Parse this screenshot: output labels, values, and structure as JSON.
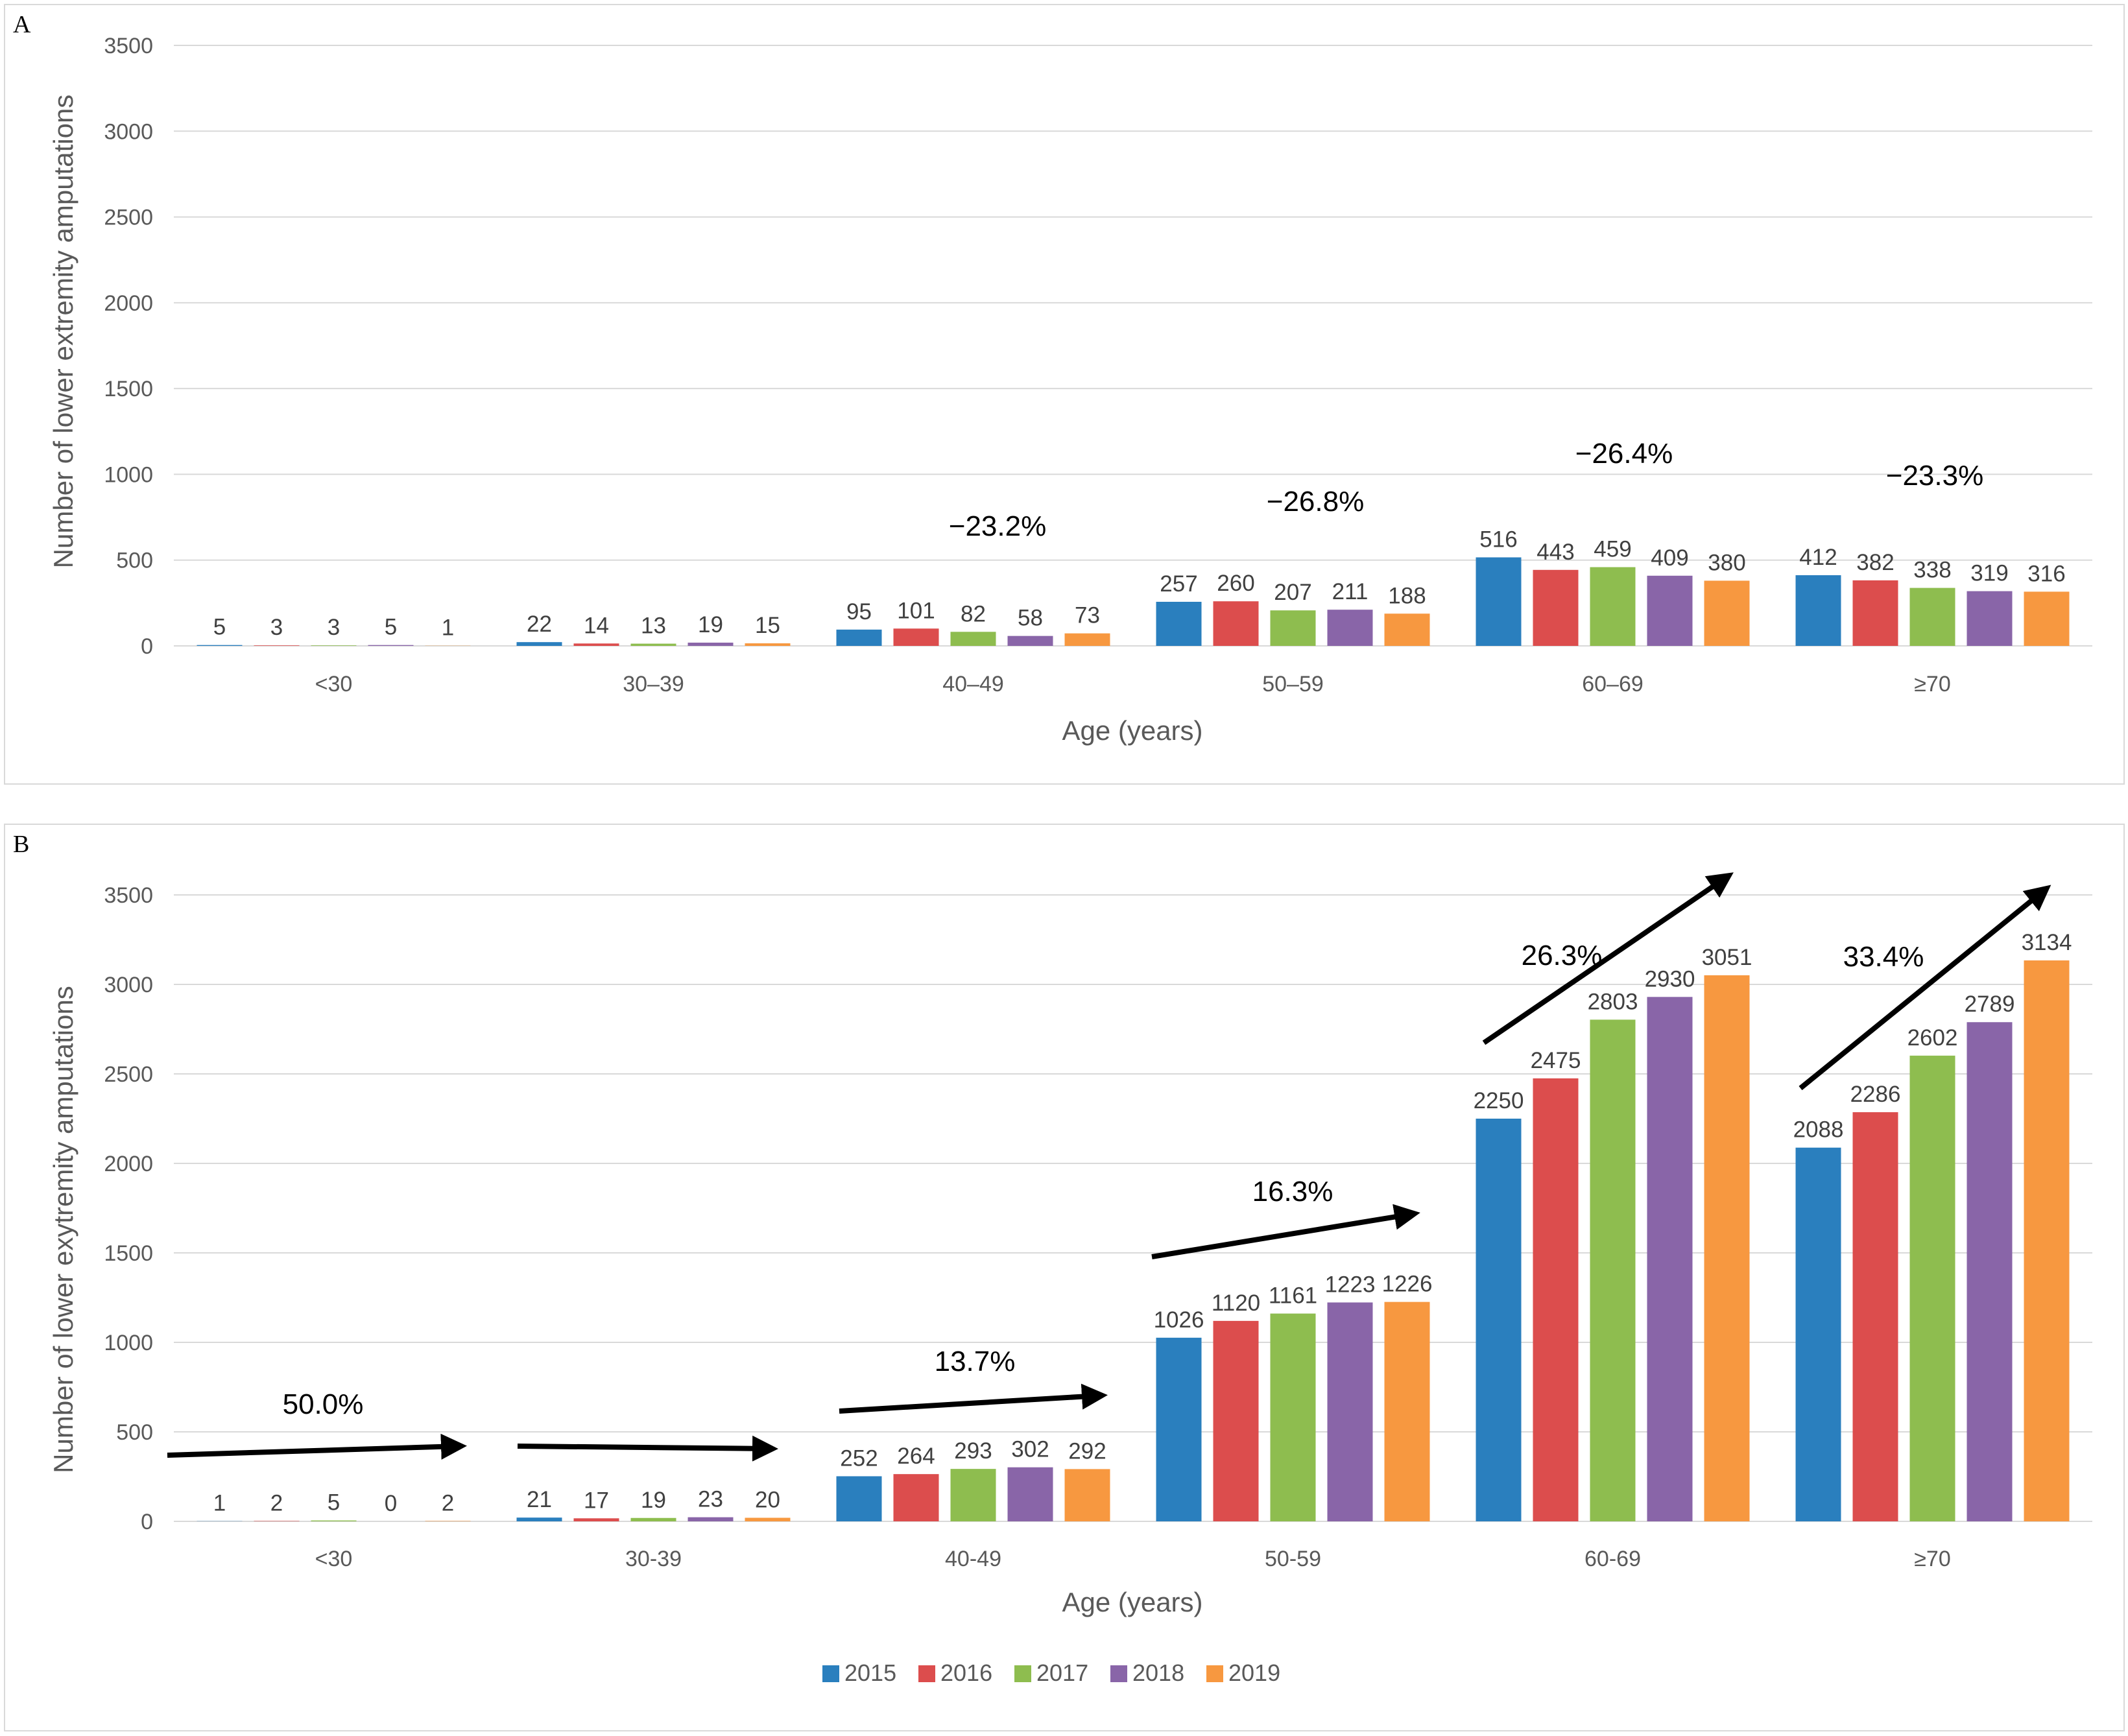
{
  "colors": {
    "2015": "#2a7fbe",
    "2016": "#dc4d4d",
    "2017": "#8ebd4f",
    "2018": "#8965a8",
    "2019": "#f79840",
    "grid": "#d9d9d9",
    "text": "#595959"
  },
  "legend": [
    "2015",
    "2016",
    "2017",
    "2018",
    "2019"
  ],
  "chart_data": [
    {
      "panel": "A",
      "type": "bar",
      "xlabel": "Age (years)",
      "ylabel": "Number of lower extremity amputations",
      "ylim": [
        0,
        3500
      ],
      "yticks": [
        0,
        500,
        1000,
        1500,
        2000,
        2500,
        3000,
        3500
      ],
      "grid": true,
      "categories": [
        "<30",
        "30–39",
        "40–49",
        "50–59",
        "60–69",
        "≥70"
      ],
      "series": [
        {
          "name": "2015",
          "values": [
            5,
            22,
            95,
            257,
            516,
            412
          ]
        },
        {
          "name": "2016",
          "values": [
            3,
            14,
            101,
            260,
            443,
            382
          ]
        },
        {
          "name": "2017",
          "values": [
            3,
            13,
            82,
            207,
            459,
            338
          ]
        },
        {
          "name": "2018",
          "values": [
            5,
            19,
            58,
            211,
            409,
            319
          ]
        },
        {
          "name": "2019",
          "values": [
            1,
            15,
            73,
            188,
            380,
            316
          ]
        }
      ],
      "annotations": [
        {
          "category": "40–49",
          "text": "−23.2%"
        },
        {
          "category": "50–59",
          "text": "−26.8%"
        },
        {
          "category": "60–69",
          "text": "−26.4%"
        },
        {
          "category": "≥70",
          "text": "−23.3%"
        }
      ]
    },
    {
      "panel": "B",
      "type": "bar",
      "xlabel": "Age (years)",
      "ylabel": "Number of lower exytremity amputations",
      "ylim": [
        0,
        3500
      ],
      "yticks": [
        0,
        500,
        1000,
        1500,
        2000,
        2500,
        3000,
        3500
      ],
      "grid": true,
      "categories": [
        "<30",
        "30-39",
        "40-49",
        "50-59",
        "60-69",
        "≥70"
      ],
      "series": [
        {
          "name": "2015",
          "values": [
            1,
            21,
            252,
            1026,
            2250,
            2088
          ]
        },
        {
          "name": "2016",
          "values": [
            2,
            17,
            264,
            1120,
            2475,
            2286
          ]
        },
        {
          "name": "2017",
          "values": [
            5,
            19,
            293,
            1161,
            2803,
            2602
          ]
        },
        {
          "name": "2018",
          "values": [
            0,
            23,
            302,
            1223,
            2930,
            2789
          ]
        },
        {
          "name": "2019",
          "values": [
            2,
            20,
            292,
            1226,
            3051,
            3134
          ]
        }
      ],
      "annotations": [
        {
          "category": "<30",
          "text": "50.0%"
        },
        {
          "category": "40-49",
          "text": "13.7%"
        },
        {
          "category": "50-59",
          "text": "16.3%"
        },
        {
          "category": "60-69",
          "text": "26.3%"
        },
        {
          "category": "≥70",
          "text": "33.4%"
        }
      ]
    }
  ]
}
